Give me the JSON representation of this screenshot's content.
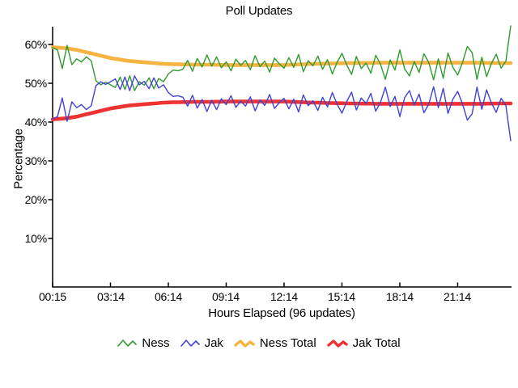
{
  "chart_data": {
    "type": "line",
    "title": "Poll Updates",
    "xlabel": "Hours Elapsed (96 updates)",
    "ylabel": "Percentage",
    "x_tick_labels": [
      "00:15",
      "03:14",
      "06:14",
      "09:14",
      "12:14",
      "15:14",
      "18:14",
      "21:14"
    ],
    "x_tick_every_n_updates": 12,
    "y_tick_labels": [
      "60%",
      "50%",
      "40%",
      "30%",
      "20%",
      "10%"
    ],
    "y_tick_values": [
      60,
      50,
      40,
      30,
      20,
      10
    ],
    "ylim": [
      0,
      65
    ],
    "grid": false,
    "legend_position": "bottom",
    "axis_color": "#000000",
    "background_color": "#ffffff",
    "n_updates": 96,
    "series": [
      {
        "name": "Ness",
        "color": "#2f9b2f",
        "line_width": 1.4,
        "values": [
          59.2,
          58.6,
          53.8,
          59.8,
          54.8,
          56.3,
          55.5,
          56.8,
          55.8,
          50.6,
          49.6,
          50.3,
          49.6,
          48.9,
          51.6,
          48.4,
          51.9,
          48.1,
          50.4,
          49.5,
          51.4,
          48.6,
          51.2,
          50.4,
          52.4,
          53.4,
          53.2,
          53.6,
          55.9,
          53.1,
          56.4,
          54.2,
          57.3,
          54.4,
          56.8,
          54.0,
          55.5,
          53.2,
          56.2,
          54.6,
          55.9,
          53.5,
          57.1,
          54.3,
          55.7,
          52.9,
          56.5,
          55.0,
          53.9,
          56.6,
          54.1,
          57.4,
          53.0,
          55.8,
          54.5,
          57.0,
          53.6,
          56.1,
          52.4,
          55.4,
          57.7,
          54.7,
          52.3,
          56.9,
          53.8,
          55.2,
          52.6,
          57.2,
          54.9,
          51.0,
          56.0,
          53.4,
          58.6,
          53.7,
          51.9,
          55.6,
          52.8,
          57.6,
          55.4,
          50.9,
          56.3,
          51.3,
          57.8,
          54.1,
          52.1,
          55.3,
          59.5,
          57.9,
          51.0,
          56.7,
          51.7,
          55.1,
          57.5,
          53.9,
          55.7,
          64.8
        ]
      },
      {
        "name": "Jak",
        "color": "#4141d6",
        "line_width": 1.4,
        "values": [
          40.8,
          41.4,
          46.2,
          40.2,
          45.2,
          43.7,
          44.5,
          43.2,
          44.2,
          49.4,
          50.4,
          49.7,
          50.4,
          51.1,
          48.4,
          51.6,
          48.1,
          51.9,
          49.6,
          50.5,
          48.6,
          51.4,
          48.8,
          49.6,
          47.6,
          46.6,
          46.8,
          46.4,
          44.1,
          46.9,
          43.6,
          45.8,
          42.7,
          45.6,
          43.2,
          46.0,
          44.5,
          46.8,
          43.8,
          45.4,
          44.1,
          46.5,
          42.9,
          45.7,
          44.3,
          47.1,
          43.5,
          45.0,
          46.1,
          43.4,
          45.9,
          42.6,
          47.0,
          44.2,
          45.5,
          43.0,
          46.4,
          43.9,
          47.6,
          44.6,
          42.3,
          45.3,
          47.7,
          43.1,
          46.2,
          44.8,
          47.4,
          42.8,
          45.1,
          49.0,
          44.0,
          46.6,
          41.4,
          46.3,
          48.1,
          44.4,
          47.2,
          42.4,
          44.6,
          49.1,
          43.7,
          48.7,
          42.2,
          45.9,
          47.9,
          44.7,
          40.5,
          42.1,
          49.0,
          43.3,
          48.3,
          44.9,
          42.5,
          46.1,
          44.3,
          35.2
        ]
      },
      {
        "name": "Ness Total",
        "color": "#f5b441",
        "line_width": 4.6,
        "values": [
          59.3,
          59.2,
          59.1,
          59.0,
          58.8,
          58.6,
          58.3,
          58.0,
          57.7,
          57.4,
          57.1,
          56.8,
          56.5,
          56.3,
          56.1,
          55.9,
          55.7,
          55.6,
          55.5,
          55.4,
          55.3,
          55.2,
          55.1,
          55.0,
          54.95,
          54.9,
          54.9,
          54.85,
          54.85,
          54.8,
          54.8,
          54.8,
          54.8,
          54.8,
          54.75,
          54.75,
          54.7,
          54.7,
          54.7,
          54.7,
          54.7,
          54.7,
          54.7,
          54.7,
          54.7,
          54.7,
          54.7,
          54.7,
          54.7,
          54.75,
          54.8,
          54.85,
          54.9,
          54.95,
          55.0,
          55.0,
          55.05,
          55.1,
          55.1,
          55.15,
          55.15,
          55.2,
          55.2,
          55.2,
          55.25,
          55.25,
          55.25,
          55.3,
          55.3,
          55.3,
          55.3,
          55.3,
          55.3,
          55.3,
          55.3,
          55.3,
          55.3,
          55.3,
          55.3,
          55.3,
          55.3,
          55.3,
          55.3,
          55.3,
          55.3,
          55.3,
          55.3,
          55.3,
          55.3,
          55.3,
          55.25,
          55.25,
          55.2,
          55.2,
          55.2,
          55.2
        ]
      },
      {
        "name": "Jak Total",
        "color": "#ee3232",
        "line_width": 4.6,
        "values": [
          40.7,
          40.8,
          40.9,
          41.0,
          41.2,
          41.4,
          41.7,
          42.0,
          42.3,
          42.6,
          42.9,
          43.2,
          43.5,
          43.7,
          43.9,
          44.1,
          44.3,
          44.4,
          44.5,
          44.6,
          44.7,
          44.8,
          44.9,
          45.0,
          45.05,
          45.1,
          45.1,
          45.15,
          45.15,
          45.2,
          45.2,
          45.2,
          45.2,
          45.2,
          45.25,
          45.25,
          45.3,
          45.3,
          45.3,
          45.3,
          45.3,
          45.3,
          45.3,
          45.3,
          45.3,
          45.3,
          45.3,
          45.3,
          45.3,
          45.25,
          45.2,
          45.15,
          45.1,
          45.05,
          45.0,
          45.0,
          44.95,
          44.9,
          44.9,
          44.85,
          44.85,
          44.8,
          44.8,
          44.8,
          44.75,
          44.75,
          44.75,
          44.7,
          44.7,
          44.7,
          44.7,
          44.7,
          44.7,
          44.7,
          44.7,
          44.7,
          44.7,
          44.7,
          44.7,
          44.7,
          44.7,
          44.7,
          44.7,
          44.7,
          44.7,
          44.7,
          44.7,
          44.7,
          44.7,
          44.7,
          44.75,
          44.75,
          44.8,
          44.8,
          44.8,
          44.8
        ]
      }
    ]
  }
}
